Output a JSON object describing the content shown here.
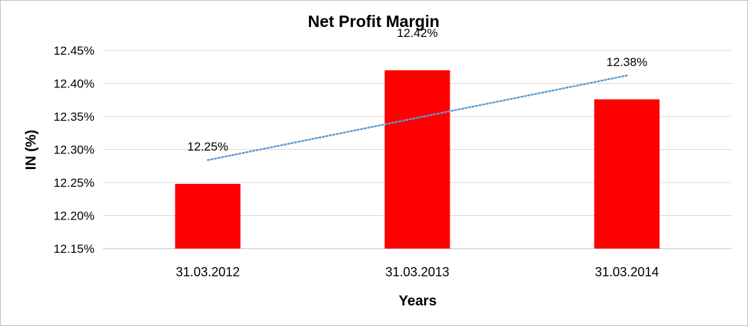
{
  "chart_data": {
    "type": "bar",
    "title": "Net Profit Margin",
    "xlabel": "Years",
    "ylabel": "IN (%)",
    "categories": [
      "31.03.2012",
      "31.03.2013",
      "31.03.2014"
    ],
    "values": [
      12.248,
      12.42,
      12.376
    ],
    "data_labels": [
      "12.25%",
      "12.42%",
      "12.38%"
    ],
    "ylim": [
      12.15,
      12.45
    ],
    "yticks": [
      12.15,
      12.2,
      12.25,
      12.3,
      12.35,
      12.4,
      12.45
    ],
    "ytick_labels": [
      "12.15%",
      "12.20%",
      "12.25%",
      "12.30%",
      "12.35%",
      "12.40%",
      "12.45%"
    ],
    "grid": true,
    "legend": "none",
    "trendline": {
      "type": "linear",
      "style": "dotted",
      "color": "#5b9bd5"
    },
    "bar_color": "#ff0000"
  }
}
